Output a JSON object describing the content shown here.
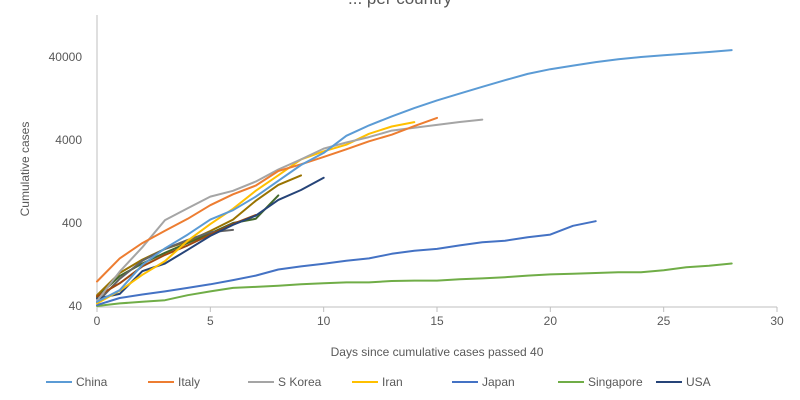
{
  "chart_data": {
    "type": "line",
    "title": "... per country",
    "xlabel": "Days since cumulative cases passed 40",
    "ylabel": "Cumulative cases",
    "xlim": [
      0,
      30
    ],
    "ylim": [
      40,
      80000
    ],
    "y_scale": "log",
    "x_ticks": [
      0,
      5,
      10,
      15,
      20,
      25,
      30
    ],
    "y_ticks": [
      40,
      400,
      4000,
      40000
    ],
    "x_tick_labels": [
      "0",
      "5",
      "10",
      "15",
      "20",
      "25",
      "30"
    ],
    "y_tick_labels": [
      "40",
      "400",
      "4000",
      "40000"
    ],
    "legend_position": "bottom",
    "grid": false,
    "series": [
      {
        "name": "China",
        "color": "#5b9bd5",
        "x": [
          0,
          1,
          2,
          3,
          4,
          5,
          6,
          7,
          8,
          9,
          10,
          11,
          12,
          13,
          14,
          15,
          16,
          17,
          18,
          19,
          20,
          21,
          22,
          23,
          24,
          25,
          26,
          27,
          28
        ],
        "y": [
          45,
          62,
          125,
          198,
          290,
          440,
          570,
          830,
          1290,
          2000,
          2800,
          4500,
          6000,
          7700,
          9700,
          12000,
          14500,
          17500,
          21000,
          25000,
          28500,
          31500,
          34700,
          37500,
          40000,
          42000,
          44000,
          46000,
          48500
        ]
      },
      {
        "name": "Italy",
        "color": "#ed7d31",
        "x": [
          0,
          1,
          2,
          3,
          4,
          5,
          6,
          7,
          8,
          9,
          10,
          11,
          12,
          13,
          14,
          15
        ],
        "y": [
          79,
          150,
          229,
          322,
          450,
          655,
          888,
          1128,
          1694,
          2036,
          2502,
          3089,
          3858,
          4636,
          5883,
          7375
        ]
      },
      {
        "name": "S Korea",
        "color": "#a5a5a5",
        "x": [
          0,
          1,
          2,
          3,
          4,
          5,
          6,
          7,
          8,
          9,
          10,
          11,
          12,
          13,
          14,
          15,
          16,
          17
        ],
        "y": [
          46,
          104,
          204,
          433,
          602,
          833,
          977,
          1261,
          1766,
          2337,
          3150,
          3736,
          4335,
          5186,
          5621,
          6088,
          6593,
          7041
        ]
      },
      {
        "name": "Iran",
        "color": "#ffc000",
        "x": [
          0,
          1,
          2,
          3,
          4,
          5,
          6,
          7,
          8,
          9,
          10,
          11,
          12,
          13,
          14
        ],
        "y": [
          43,
          61,
          95,
          139,
          245,
          388,
          593,
          978,
          1501,
          2336,
          2922,
          3513,
          4747,
          5823,
          6566
        ]
      },
      {
        "name": "Japan",
        "color": "#4472c4",
        "x": [
          0,
          1,
          2,
          3,
          4,
          5,
          6,
          7,
          8,
          9,
          10,
          11,
          12,
          13,
          14,
          15,
          16,
          17,
          18,
          19,
          20,
          21,
          22
        ],
        "y": [
          41,
          50,
          55,
          60,
          66,
          73,
          82,
          93,
          110,
          120,
          129,
          140,
          150,
          170,
          185,
          195,
          215,
          235,
          245,
          270,
          290,
          370,
          420
        ]
      },
      {
        "name": "Singapore",
        "color": "#70ad47",
        "x": [
          0,
          1,
          2,
          3,
          4,
          5,
          6,
          7,
          8,
          9,
          10,
          11,
          12,
          13,
          14,
          15,
          16,
          17,
          18,
          19,
          20,
          21,
          22,
          23,
          24,
          25,
          26,
          27,
          28
        ],
        "y": [
          40,
          43,
          45,
          47,
          54,
          60,
          66,
          68,
          70,
          73,
          75,
          77,
          77,
          80,
          81,
          81,
          84,
          86,
          89,
          93,
          96,
          98,
          100,
          102,
          102,
          108,
          117,
          122,
          130
        ]
      },
      {
        "name": "USA",
        "color": "#264478",
        "x": [
          0,
          1,
          2,
          3,
          4,
          5,
          6,
          7,
          8,
          9,
          10
        ],
        "y": [
          49,
          56,
          105,
          130,
          190,
          280,
          380,
          490,
          760,
          1000,
          1400
        ]
      },
      {
        "name": "",
        "color": "#9e480e",
        "x": [
          0,
          1,
          2,
          3,
          4,
          5,
          6,
          7
        ],
        "y": [
          52,
          75,
          120,
          165,
          215,
          290,
          390,
          500
        ]
      },
      {
        "name": "",
        "color": "#636363",
        "x": [
          0,
          1,
          2,
          3,
          4,
          5,
          6
        ],
        "y": [
          44,
          85,
          140,
          195,
          250,
          310,
          330
        ]
      },
      {
        "name": "",
        "color": "#997300",
        "x": [
          0,
          1,
          2,
          3,
          4,
          5,
          6,
          7,
          8,
          9
        ],
        "y": [
          54,
          100,
          145,
          195,
          240,
          320,
          440,
          740,
          1150,
          1500
        ]
      },
      {
        "name": "",
        "color": "#43682b",
        "x": [
          0,
          1,
          2,
          3,
          4,
          5,
          6,
          7,
          8
        ],
        "y": [
          51,
          92,
          130,
          175,
          230,
          300,
          400,
          450,
          860
        ]
      }
    ]
  }
}
